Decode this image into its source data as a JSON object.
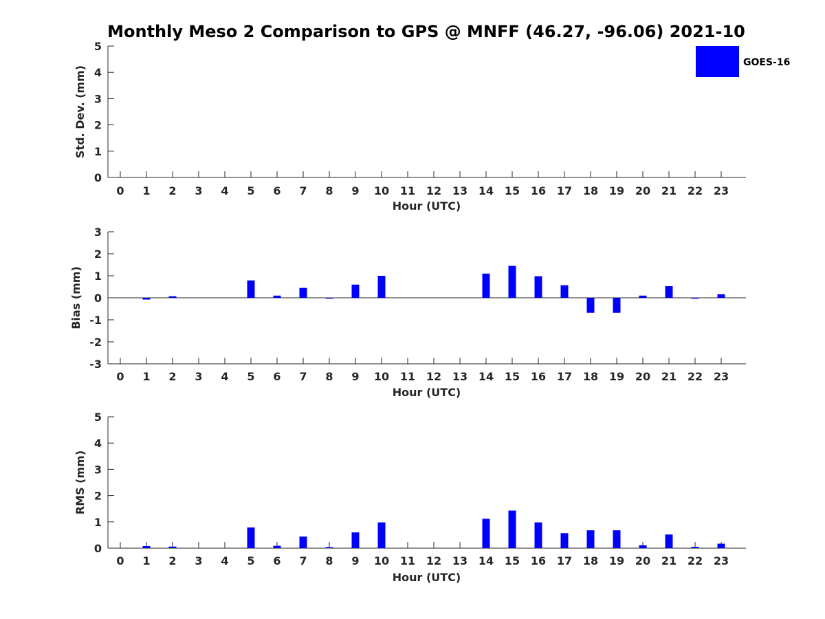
{
  "title": "Monthly Meso 2 Comparison to GPS @ MNFF (46.27, -96.06) 2021-10",
  "legend": {
    "label": "GOES-16",
    "color": "#0000ff"
  },
  "chart_data": [
    {
      "type": "bar",
      "xlabel": "Hour (UTC)",
      "ylabel": "Std. Dev. (mm)",
      "categories": [
        "0",
        "1",
        "2",
        "3",
        "4",
        "5",
        "6",
        "7",
        "8",
        "9",
        "10",
        "11",
        "12",
        "13",
        "14",
        "15",
        "16",
        "17",
        "18",
        "19",
        "20",
        "21",
        "22",
        "23"
      ],
      "series": [
        {
          "name": "GOES-16",
          "values": [
            null,
            null,
            null,
            null,
            null,
            null,
            null,
            null,
            null,
            null,
            null,
            null,
            null,
            null,
            null,
            null,
            null,
            null,
            null,
            null,
            null,
            null,
            null,
            null
          ]
        }
      ],
      "ylim": [
        0,
        5
      ],
      "yticks": [
        "0",
        "1",
        "2",
        "3",
        "4",
        "5"
      ],
      "grid": false,
      "legend_position": "top-right"
    },
    {
      "type": "bar",
      "xlabel": "Hour (UTC)",
      "ylabel": "Bias (mm)",
      "categories": [
        "0",
        "1",
        "2",
        "3",
        "4",
        "5",
        "6",
        "7",
        "8",
        "9",
        "10",
        "11",
        "12",
        "13",
        "14",
        "15",
        "16",
        "17",
        "18",
        "19",
        "20",
        "21",
        "22",
        "23"
      ],
      "series": [
        {
          "name": "GOES-16",
          "values": [
            null,
            -0.08,
            0.07,
            null,
            null,
            0.79,
            0.1,
            0.45,
            -0.04,
            0.6,
            1.0,
            null,
            null,
            null,
            1.1,
            1.45,
            0.98,
            0.57,
            -0.68,
            -0.68,
            0.1,
            0.53,
            -0.04,
            0.16
          ]
        }
      ],
      "ylim": [
        -3,
        3
      ],
      "yticks": [
        "-3",
        "-2",
        "-1",
        "0",
        "1",
        "2",
        "3"
      ],
      "grid": false
    },
    {
      "type": "bar",
      "xlabel": "Hour (UTC)",
      "ylabel": "RMS (mm)",
      "categories": [
        "0",
        "1",
        "2",
        "3",
        "4",
        "5",
        "6",
        "7",
        "8",
        "9",
        "10",
        "11",
        "12",
        "13",
        "14",
        "15",
        "16",
        "17",
        "18",
        "19",
        "20",
        "21",
        "22",
        "23"
      ],
      "series": [
        {
          "name": "GOES-16",
          "values": [
            null,
            0.08,
            0.06,
            null,
            null,
            0.79,
            0.09,
            0.44,
            0.04,
            0.6,
            0.98,
            null,
            null,
            null,
            1.12,
            1.43,
            0.98,
            0.57,
            0.68,
            0.68,
            0.11,
            0.52,
            0.05,
            0.17
          ]
        }
      ],
      "ylim": [
        0,
        5
      ],
      "yticks": [
        "0",
        "1",
        "2",
        "3",
        "4",
        "5"
      ],
      "grid": false
    }
  ]
}
